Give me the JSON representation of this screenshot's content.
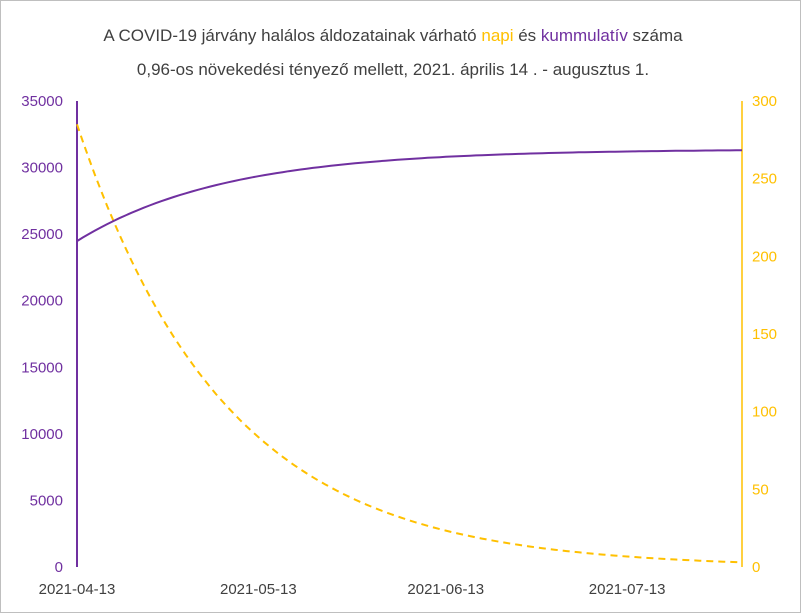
{
  "chart_data": {
    "type": "line",
    "title_line1": [
      {
        "text": "A COVID-19 járvány halálos áldozatainak várható ",
        "color": "#404040"
      },
      {
        "text": "napi",
        "color": "#ffc000"
      },
      {
        "text": " és ",
        "color": "#404040"
      },
      {
        "text": "kummulatív",
        "color": "#7030a0"
      },
      {
        "text": " száma",
        "color": "#404040"
      }
    ],
    "title_line2": "0,96-os növekedési tényező mellett, 2021. április 14 . - augusztus 1.",
    "x_start": "2021-04-13",
    "x_end": "2021-08-01",
    "x_ticks": [
      "2021-04-13",
      "2021-05-13",
      "2021-06-13",
      "2021-07-13"
    ],
    "y_left": {
      "ticks": [
        "0",
        "5000",
        "10000",
        "15000",
        "20000",
        "25000",
        "30000",
        "35000"
      ],
      "range": [
        0,
        35000
      ],
      "color": "#7030a0"
    },
    "y_right": {
      "ticks": [
        "0",
        "50",
        "100",
        "150",
        "200",
        "250",
        "300"
      ],
      "range": [
        0,
        300
      ],
      "color": "#ffc000"
    },
    "colors": {
      "cumulative": "#7030a0",
      "daily": "#ffc000"
    },
    "cumulative": {
      "start": 24480,
      "end": 31300,
      "style": "solid",
      "axis": "left"
    },
    "daily": {
      "start": 285,
      "end": 3,
      "style": "dashed",
      "axis": "right"
    },
    "series": [
      {
        "key": "cumulative",
        "axis": "left",
        "points": [
          [
            "2021-04-13",
            24480
          ],
          [
            "2021-04-23",
            26870
          ],
          [
            "2021-05-03",
            28370
          ],
          [
            "2021-05-13",
            29290
          ],
          [
            "2021-05-23",
            29900
          ],
          [
            "2021-06-02",
            30380
          ],
          [
            "2021-06-13",
            30720
          ],
          [
            "2021-06-23",
            30920
          ],
          [
            "2021-07-03",
            31060
          ],
          [
            "2021-07-13",
            31160
          ],
          [
            "2021-07-23",
            31250
          ],
          [
            "2021-08-01",
            31300
          ]
        ]
      },
      {
        "key": "daily",
        "axis": "right",
        "points": [
          [
            "2021-04-13",
            285
          ],
          [
            "2021-04-23",
            188
          ],
          [
            "2021-05-03",
            125
          ],
          [
            "2021-05-13",
            83
          ],
          [
            "2021-05-23",
            55
          ],
          [
            "2021-06-02",
            36
          ],
          [
            "2021-06-13",
            23
          ],
          [
            "2021-06-23",
            15
          ],
          [
            "2021-07-03",
            10
          ],
          [
            "2021-07-13",
            7
          ],
          [
            "2021-07-23",
            5
          ],
          [
            "2021-08-01",
            3
          ]
        ]
      }
    ]
  }
}
